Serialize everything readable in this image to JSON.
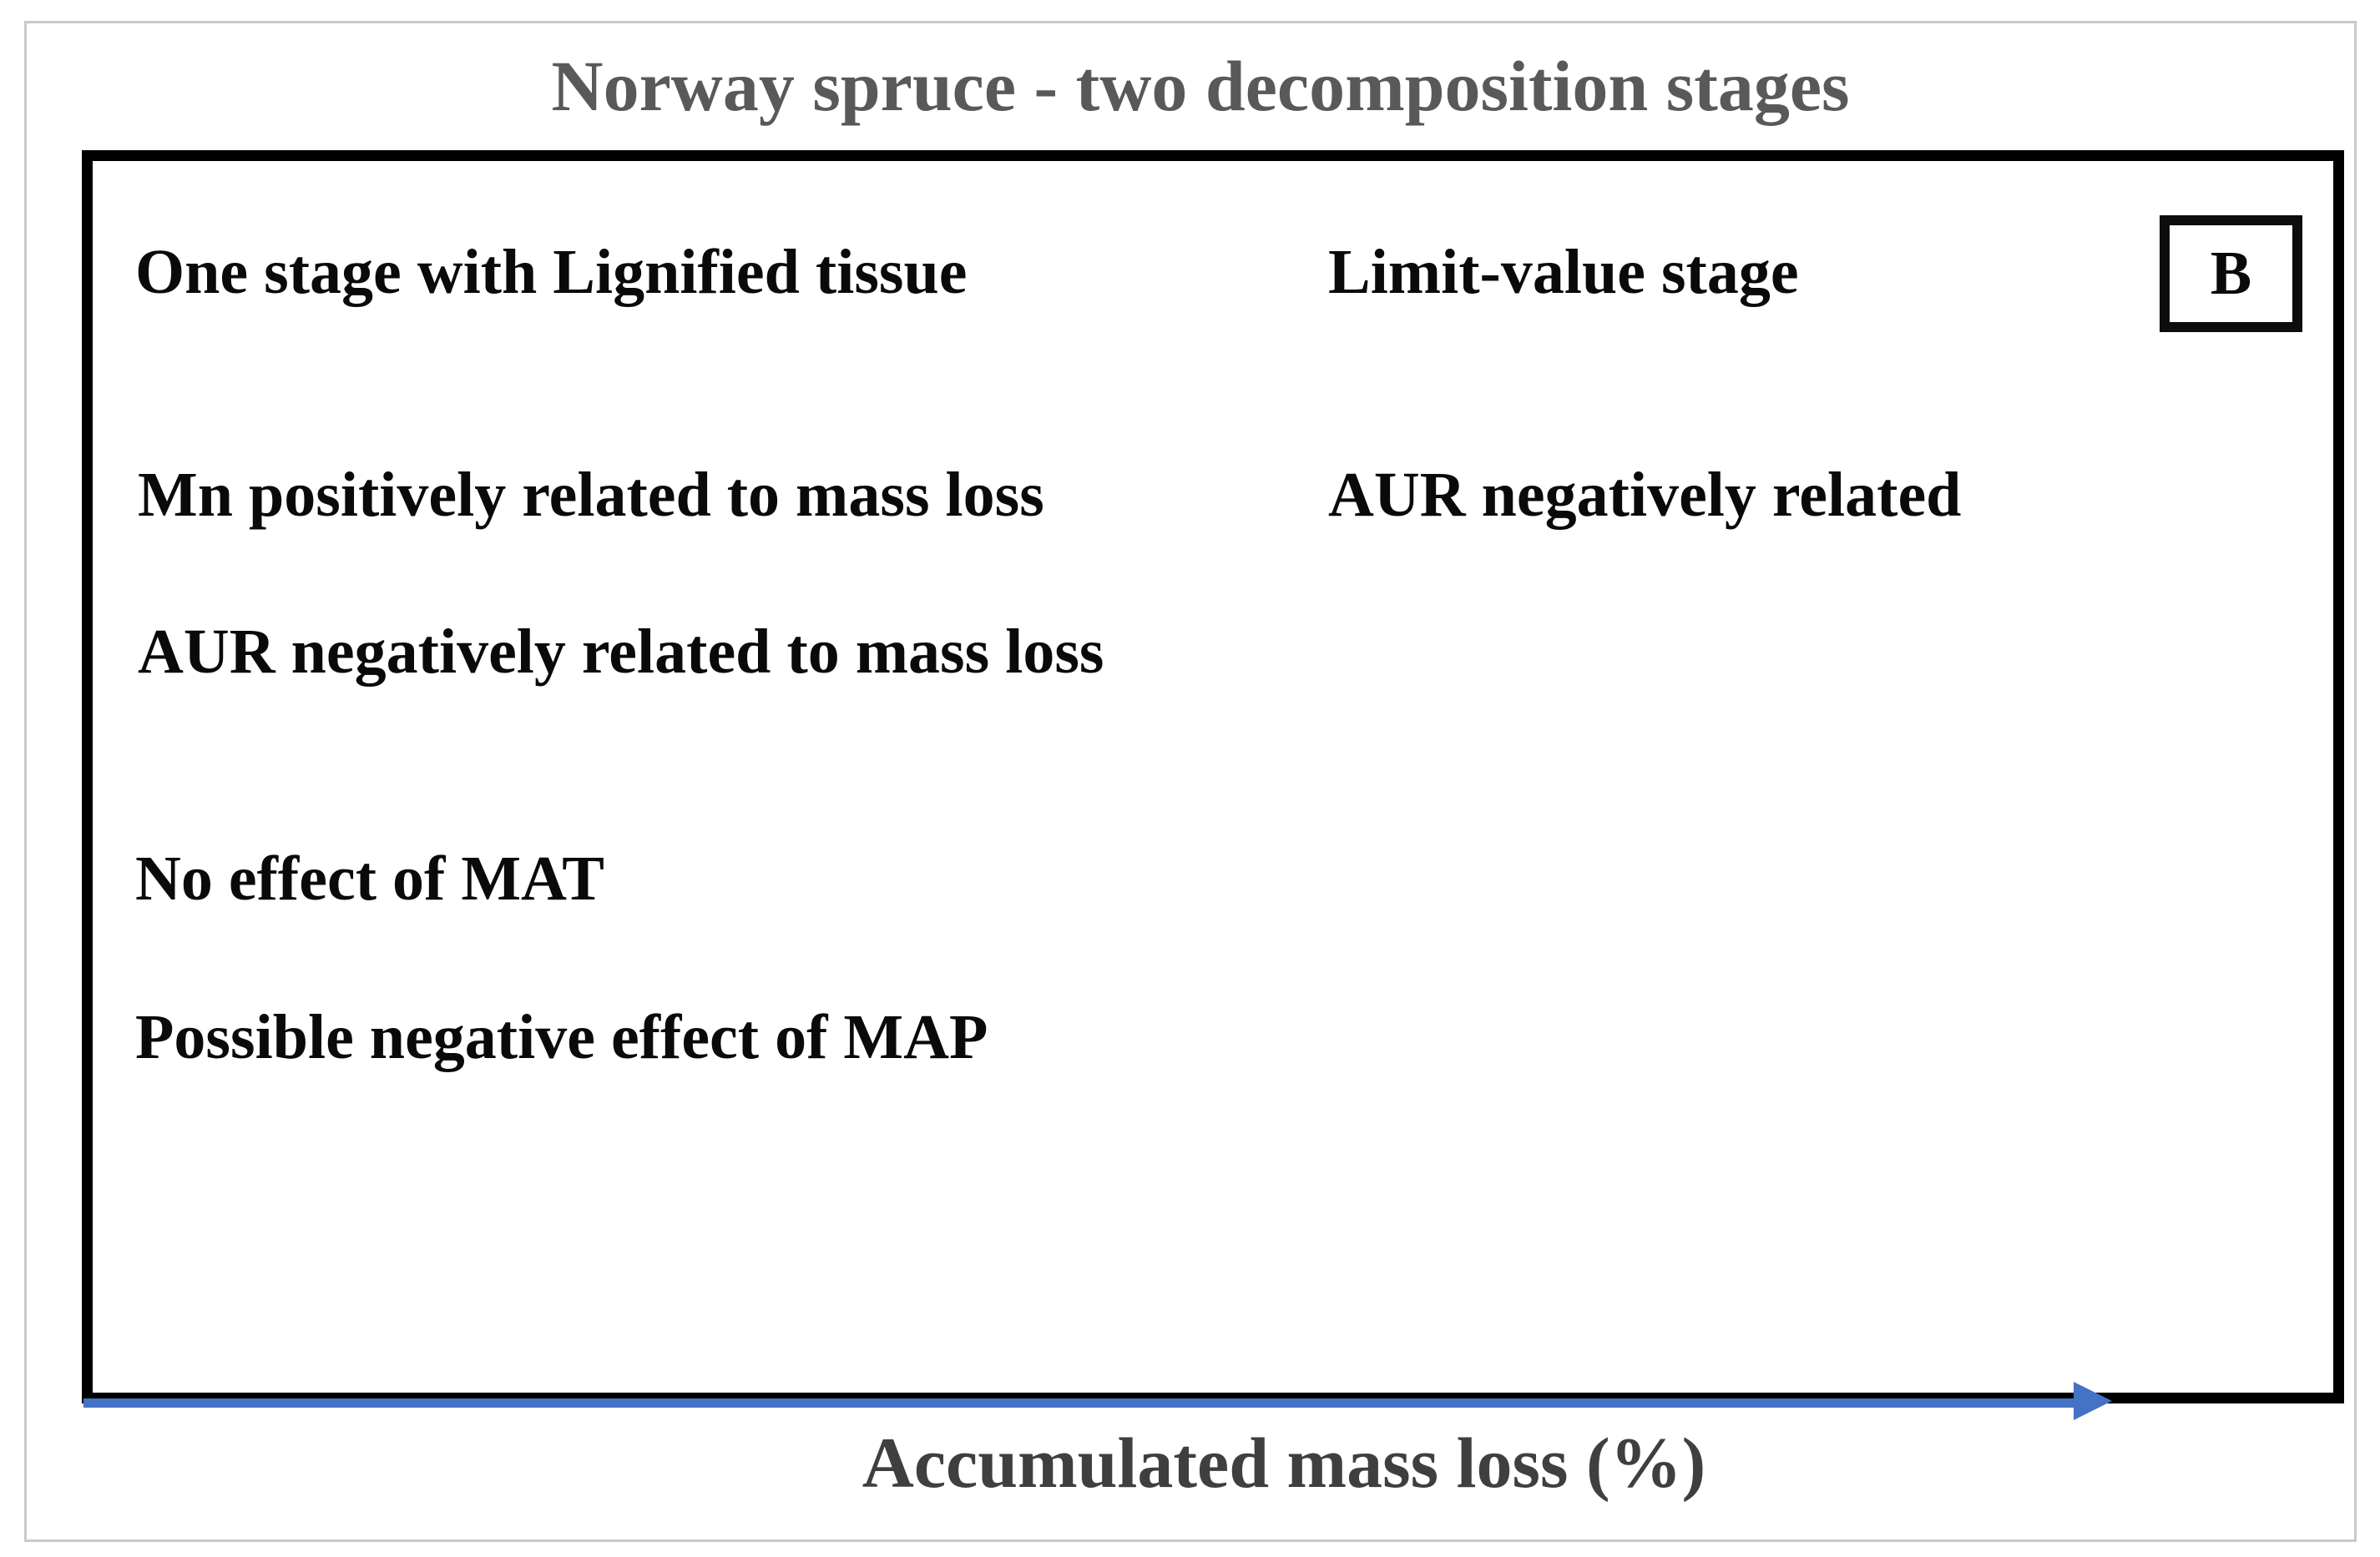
{
  "title": "Norway spruce - two decomposition stages",
  "panel_label": "B",
  "columns": {
    "left": {
      "heading": "One stage with Lignified tissue",
      "items": [
        "Mn positively related to mass loss",
        "AUR negatively related to mass loss",
        "No effect of MAT",
        "Possible negative effect of MAP"
      ]
    },
    "right": {
      "heading": "Limit-value stage",
      "items": [
        "AUR negatively related"
      ]
    }
  },
  "x_axis": {
    "label": "Accumulated mass loss (%)"
  },
  "colors": {
    "title": "#595959",
    "text": "#0a0a0a",
    "axis_label": "#3f3f3f",
    "arrow": "#4472C4",
    "frame_border": "#c9c9c9",
    "box_border": "#000000"
  }
}
